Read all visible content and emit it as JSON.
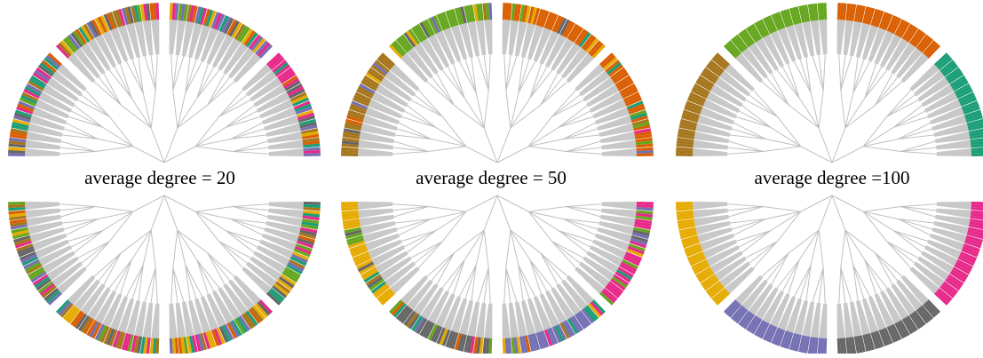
{
  "panels": [
    {
      "label": "average degree = 20",
      "mixing": 0.85,
      "base_colors": [
        "#1b9e77",
        "#d95f02",
        "#7570b3",
        "#e7298a",
        "#66a61e",
        "#e6ab02",
        "#a6761d",
        "#666666"
      ]
    },
    {
      "label": "average degree = 50",
      "mixing": 0.32,
      "base_colors": [
        "#a6761d",
        "#66a61e",
        "#d95f02",
        "#d95f02",
        "#e7298a",
        "#7570b3",
        "#666666",
        "#e6ab02"
      ]
    },
    {
      "label": "average degree =100",
      "mixing": 0.0,
      "base_colors": [
        "#a6761d",
        "#66a61e",
        "#d95f02",
        "#1b9e77",
        "#e7298a",
        "#666666",
        "#7570b3",
        "#e6ab02"
      ]
    }
  ],
  "palette": [
    "#1b9e77",
    "#d95f02",
    "#7570b3",
    "#e7298a",
    "#66a61e",
    "#e6ab02",
    "#a6761d",
    "#666666"
  ],
  "edge_color": "#c0c0c0",
  "stub_color": "#c8c8c8"
}
